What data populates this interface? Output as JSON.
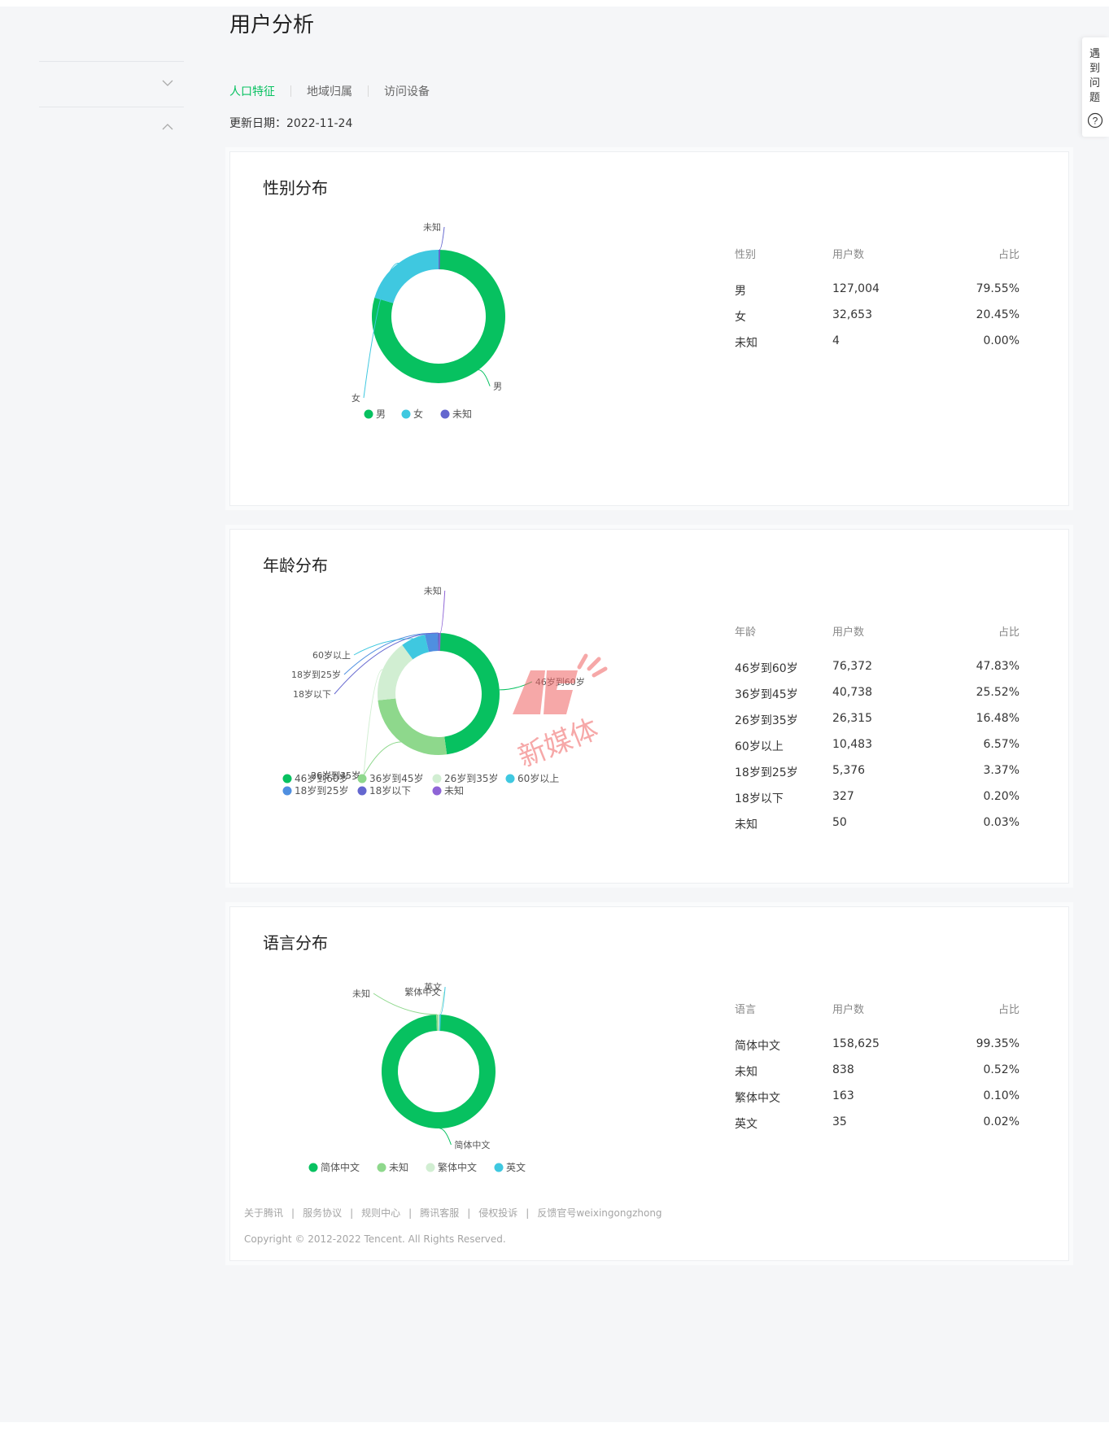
{
  "page": {
    "title": "用户分析"
  },
  "tabs": [
    {
      "label": "人口特征",
      "active": true
    },
    {
      "label": "地域归属",
      "active": false
    },
    {
      "label": "访问设备",
      "active": false
    }
  ],
  "update": {
    "label": "更新日期：",
    "date": "2022-11-24"
  },
  "help": {
    "text": "遇到问题"
  },
  "colors": {
    "accent": "#07c160"
  },
  "charts": [
    {
      "title": "性别分布",
      "chart_data": {
        "type": "pie",
        "donut": true,
        "labels": [
          "男",
          "女",
          "未知"
        ],
        "values": [
          127004,
          32653,
          4
        ],
        "colors": [
          "#07c160",
          "#3fc8e0",
          "#6467cf"
        ],
        "legend": "bottom"
      },
      "table": {
        "headers": [
          "性别",
          "用户数",
          "占比"
        ],
        "rows": [
          [
            "男",
            "127,004",
            "79.55%"
          ],
          [
            "女",
            "32,653",
            "20.45%"
          ],
          [
            "未知",
            "4",
            "0.00%"
          ]
        ]
      }
    },
    {
      "title": "年龄分布",
      "chart_data": {
        "type": "pie",
        "donut": true,
        "labels": [
          "46岁到60岁",
          "36岁到45岁",
          "26岁到35岁",
          "60岁以上",
          "18岁到25岁",
          "18岁以下",
          "未知"
        ],
        "values": [
          76372,
          40738,
          26315,
          10483,
          5376,
          327,
          50
        ],
        "colors": [
          "#07c160",
          "#8ed88c",
          "#d1eed2",
          "#3fc8e0",
          "#4f8fe0",
          "#6467cf",
          "#8e64d6"
        ],
        "legend": "bottom"
      },
      "table": {
        "headers": [
          "年龄",
          "用户数",
          "占比"
        ],
        "rows": [
          [
            "46岁到60岁",
            "76,372",
            "47.83%"
          ],
          [
            "36岁到45岁",
            "40,738",
            "25.52%"
          ],
          [
            "26岁到35岁",
            "26,315",
            "16.48%"
          ],
          [
            "60岁以上",
            "10,483",
            "6.57%"
          ],
          [
            "18岁到25岁",
            "5,376",
            "3.37%"
          ],
          [
            "18岁以下",
            "327",
            "0.20%"
          ],
          [
            "未知",
            "50",
            "0.03%"
          ]
        ]
      }
    },
    {
      "title": "语言分布",
      "chart_data": {
        "type": "pie",
        "donut": true,
        "labels": [
          "简体中文",
          "未知",
          "繁体中文",
          "英文"
        ],
        "values": [
          158625,
          838,
          163,
          35
        ],
        "colors": [
          "#07c160",
          "#8ed88c",
          "#d1eed2",
          "#3fc8e0"
        ],
        "legend": "bottom"
      },
      "table": {
        "headers": [
          "语言",
          "用户数",
          "占比"
        ],
        "rows": [
          [
            "简体中文",
            "158,625",
            "99.35%"
          ],
          [
            "未知",
            "838",
            "0.52%"
          ],
          [
            "繁体中文",
            "163",
            "0.10%"
          ],
          [
            "英文",
            "35",
            "0.02%"
          ]
        ]
      }
    }
  ],
  "footer": {
    "links": [
      "关于腾讯",
      "服务协议",
      "规则中心",
      "腾讯客服",
      "侵权投诉",
      "反馈官号weixingongzhong"
    ],
    "copyright": "Copyright © 2012-2022 Tencent. All Rights Reserved."
  },
  "watermark": {
    "text": "新媒体"
  }
}
